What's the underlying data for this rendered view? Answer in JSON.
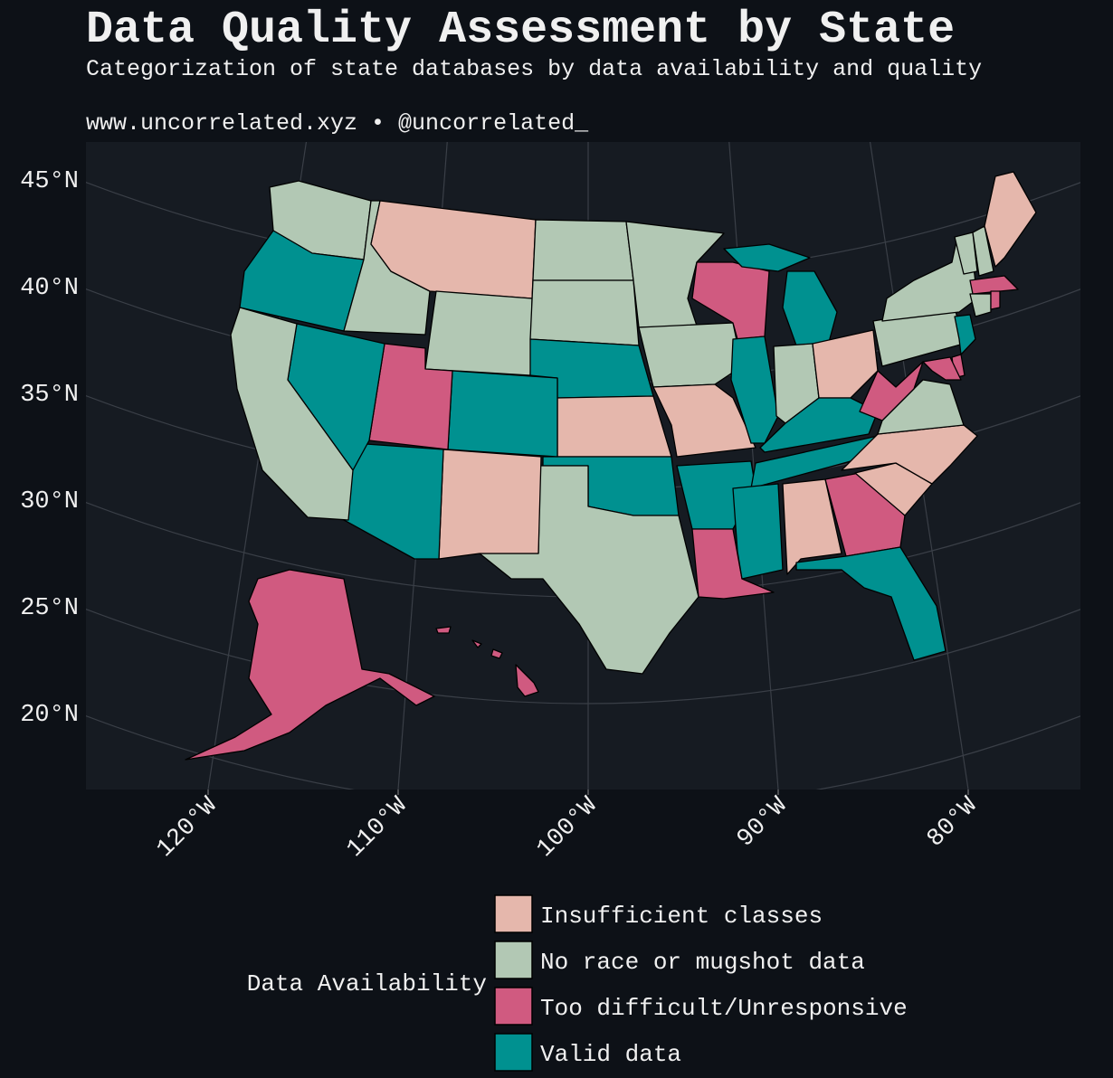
{
  "header": {
    "title": "Data Quality Assessment by State",
    "subtitle": "Categorization of state databases by data availability and quality",
    "caption": "www.uncorrelated.xyz • @uncorrelated_"
  },
  "map": {
    "lat_ticks": [
      {
        "value": 45,
        "label": "45°N"
      },
      {
        "value": 40,
        "label": "40°N"
      },
      {
        "value": 35,
        "label": "35°N"
      },
      {
        "value": 30,
        "label": "30°N"
      },
      {
        "value": 25,
        "label": "25°N"
      },
      {
        "value": 20,
        "label": "20°N"
      }
    ],
    "lon_ticks": [
      {
        "value": -120,
        "label": "120°W"
      },
      {
        "value": -110,
        "label": "110°W"
      },
      {
        "value": -100,
        "label": "100°W"
      },
      {
        "value": -90,
        "label": "90°W"
      },
      {
        "value": -80,
        "label": "80°W"
      }
    ],
    "grid": true
  },
  "legend": {
    "title": "Data Availability",
    "items": [
      {
        "name": "Insufficient classes",
        "color": "#e5b7ac"
      },
      {
        "name": "No race or mugshot data",
        "color": "#b2c8b4"
      },
      {
        "name": "Too difficult/Unresponsive",
        "color": "#d05a80"
      },
      {
        "name": "Valid data",
        "color": "#009190"
      }
    ]
  }
}
